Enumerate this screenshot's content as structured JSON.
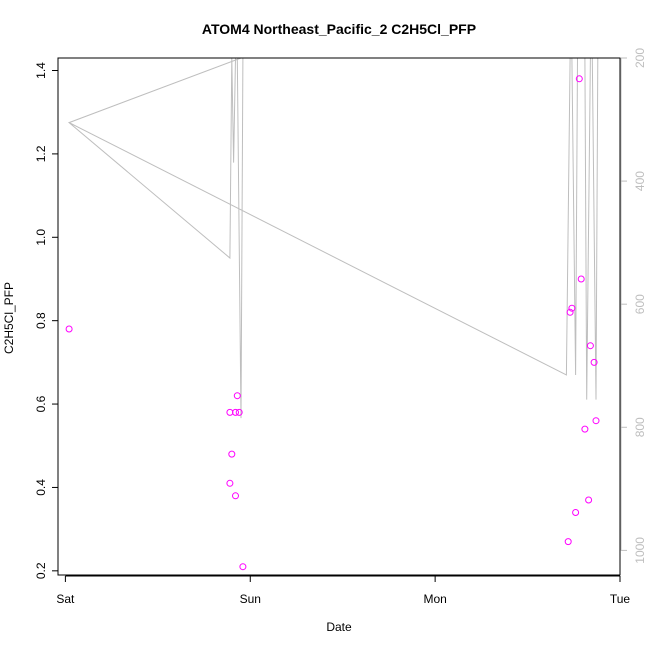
{
  "chart_data": {
    "type": "scatter",
    "title": "ATOM4 Northeast_Pacific_2 C2H5Cl_PFP",
    "xlabel": "Date",
    "ylabel": "C2H5Cl_PFP",
    "x_ticks": [
      "Sat",
      "Sun",
      "Mon",
      "Tue"
    ],
    "x_tick_positions_days": [
      0,
      1,
      2,
      3
    ],
    "xlim_days": [
      -0.04,
      3.0
    ],
    "ylim": [
      0.19,
      1.43
    ],
    "y_ticks": [
      0.2,
      0.4,
      0.6,
      0.8,
      1.0,
      1.2,
      1.4
    ],
    "y2lim": [
      1040,
      200
    ],
    "y2_ticks": [
      200,
      400,
      600,
      800,
      1000
    ],
    "grid": false,
    "colors": {
      "points": "#ff00ff",
      "line": "#bebebe",
      "axis": "#000000",
      "secondary_axis": "#bebebe"
    },
    "series": [
      {
        "kind": "points",
        "x": [
          0.02,
          0.89,
          0.9,
          0.92,
          0.89,
          0.92,
          0.93,
          0.94,
          0.96,
          2.72,
          2.73,
          2.74,
          2.76,
          2.78,
          2.79,
          2.81,
          2.83,
          2.84,
          2.86,
          2.87
        ],
        "y": [
          0.78,
          0.41,
          0.48,
          0.38,
          0.58,
          0.58,
          0.62,
          0.58,
          0.21,
          0.27,
          0.82,
          0.83,
          0.34,
          1.38,
          0.9,
          0.54,
          0.37,
          0.74,
          0.7,
          0.56
        ]
      },
      {
        "kind": "line",
        "x": [
          0.02,
          0.89,
          0.9,
          0.91,
          0.92,
          0.93,
          0.95,
          0.96,
          0.95,
          0.02,
          2.71,
          2.73,
          2.74,
          2.76,
          2.77,
          2.78,
          2.79,
          2.81,
          2.82,
          2.84,
          2.85,
          2.87,
          2.88
        ],
        "y": [
          305,
          525,
          200,
          370,
          200,
          200,
          785,
          200,
          200,
          305,
          715,
          200,
          200,
          715,
          200,
          200,
          200,
          200,
          755,
          200,
          200,
          755,
          200
        ]
      }
    ]
  }
}
